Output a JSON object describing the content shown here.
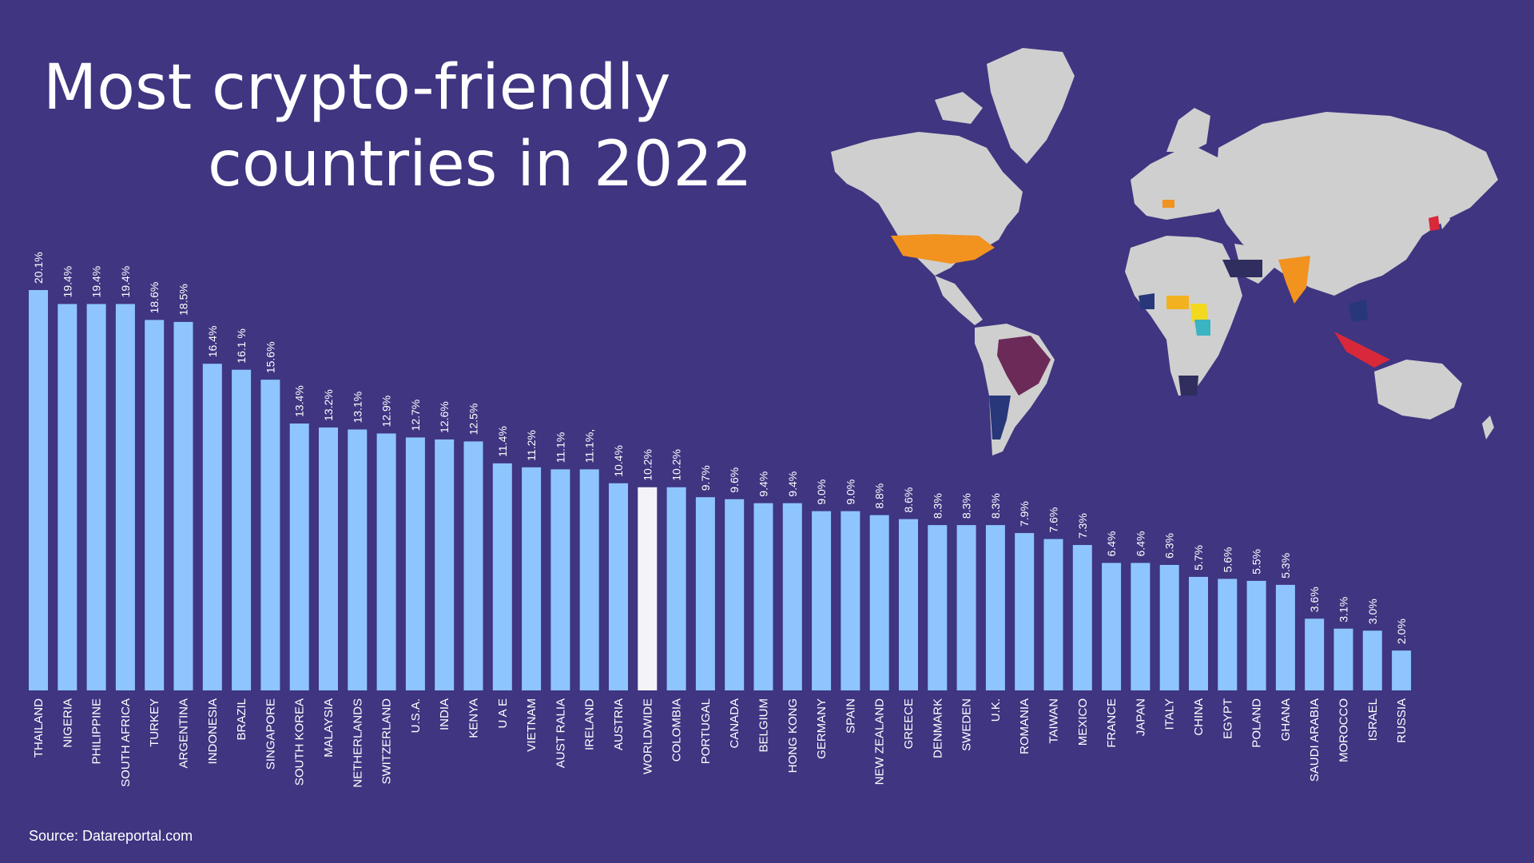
{
  "title": {
    "line1": "Most crypto-friendly",
    "line2": "countries in 2022"
  },
  "source": "Source: Datareportal.com",
  "colors": {
    "background": "#3f3581",
    "bar": "#8ec5ff",
    "highlight_bar": "#f4f4f8",
    "text": "#ffffff",
    "map_land": "#cfcfcf"
  },
  "chart_data": {
    "type": "bar",
    "categories": [
      "THAILAND",
      "NIGERIA",
      "PHILIPPINE",
      "SOUTH AFRICA",
      "TURKEY",
      "ARGENTINA",
      "INDONESIA",
      "BRAZIL",
      "SINGAPORE",
      "SOUTH KOREA",
      "MALAYSIA",
      "NETHERLANDS",
      "SWITZERLAND",
      "U.S.A.",
      "INDIA",
      "KENYA",
      "U A E",
      "VIETNAM",
      "AUST RALIA",
      "IRELAND",
      "AUSTRIA",
      "WORLDWIDE",
      "COLOMBIA",
      "PORTUGAL",
      "CANADA",
      "BELGIUM",
      "HONG KONG",
      "GERMANY",
      "SPAIN",
      "NEW ZEALAND",
      "GREECE",
      "DENMARK",
      "SWEDEN",
      "U.K.",
      "ROMANIA",
      "TAIWAN",
      "MEXICO",
      "FRANCE",
      "JAPAN",
      "ITALY",
      "CHINA",
      "EGYPT",
      "POLAND",
      "GHANA",
      "SAUDI ARABIA",
      "MOROCCO",
      "ISRAEL",
      "RUSSIA"
    ],
    "values": [
      20.1,
      19.4,
      19.4,
      19.4,
      18.6,
      18.5,
      16.4,
      16.1,
      15.6,
      13.4,
      13.2,
      13.1,
      12.9,
      12.7,
      12.6,
      12.5,
      11.4,
      11.2,
      11.1,
      11.1,
      10.4,
      10.2,
      10.2,
      9.7,
      9.6,
      9.4,
      9.4,
      9.0,
      9.0,
      8.8,
      8.6,
      8.3,
      8.3,
      8.3,
      7.9,
      7.6,
      7.3,
      6.4,
      6.4,
      6.3,
      5.7,
      5.6,
      5.5,
      5.3,
      3.6,
      3.1,
      3.0,
      2.0
    ],
    "value_labels": [
      "20.1%",
      "19.4%",
      "19.4%",
      "19.4%",
      "18.6%",
      "18.5%",
      "16.4%",
      "16.1 %",
      "15.6%",
      "13.4%",
      "13.2%",
      "13.1%",
      "12.9%",
      "12.7%",
      "12.6%",
      "12.5%",
      "11.4%",
      "11.2%",
      "11.1%",
      "11.1%,",
      "10.4%",
      "10.2%",
      "10.2%",
      "9.7%",
      "9.6%",
      "9.4%",
      "9.4%",
      "9.0%",
      "9.0%",
      "8.8%",
      "8.6%",
      "8.3%",
      "8.3%",
      "8.3%",
      "7.9%",
      "7.6%",
      "7.3%",
      "6.4%",
      "6.4%",
      "6.3%",
      "5.7%",
      "5.6%",
      "5.5%",
      "5.3%",
      "3.6%",
      "3.1%",
      "3.0%",
      "2.0%"
    ],
    "highlight": "WORLDWIDE",
    "ylim": [
      0,
      20.1
    ],
    "grid": false,
    "legend": "none"
  }
}
